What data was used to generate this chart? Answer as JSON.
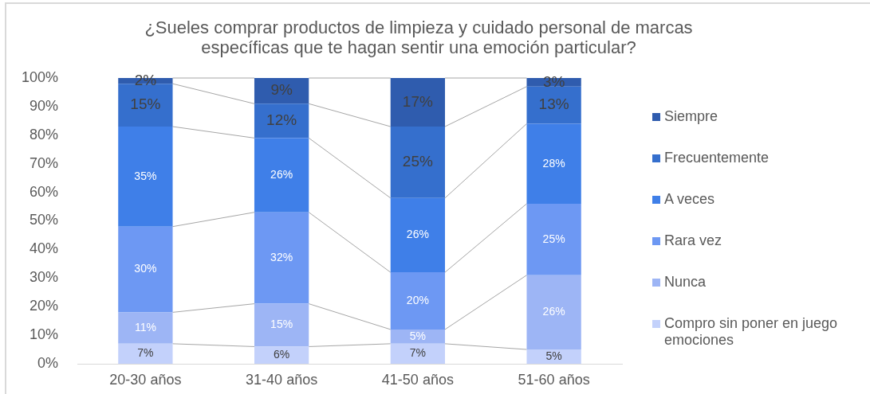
{
  "chart_data": {
    "type": "bar",
    "title": "¿Sueles comprar productos de limpieza y cuidado personal de marcas específicas que te hagan sentir una emoción particular?",
    "categories": [
      "20-30 años",
      "31-40 años",
      "41-50 años",
      "51-60 años"
    ],
    "series": [
      {
        "name": "Compro sin poner en juego emociones",
        "color": "#c3d1fb",
        "values": [
          7,
          6,
          7,
          5
        ],
        "value_labels": [
          "7%",
          "6%",
          "7%",
          "5%"
        ]
      },
      {
        "name": "Nunca",
        "color": "#9db5f5",
        "values": [
          11,
          15,
          5,
          26
        ],
        "value_labels": [
          "11%",
          "15%",
          "5%",
          "26%"
        ]
      },
      {
        "name": "Rara vez",
        "color": "#6d98f3",
        "values": [
          30,
          32,
          20,
          25
        ],
        "value_labels": [
          "30%",
          "32%",
          "20%",
          "25%"
        ]
      },
      {
        "name": "A veces",
        "color": "#3f7fe8",
        "values": [
          35,
          26,
          26,
          28
        ],
        "value_labels": [
          "35%",
          "26%",
          "26%",
          "28%"
        ]
      },
      {
        "name": "Frecuentemente",
        "color": "#356fcd",
        "values": [
          15,
          12,
          25,
          13
        ],
        "value_labels": [
          "15%",
          "12%",
          "25%",
          "13%"
        ]
      },
      {
        "name": "Siempre",
        "color": "#2f5cae",
        "values": [
          2,
          9,
          17,
          3
        ],
        "value_labels": [
          "2%",
          "9%",
          "17%",
          "3%"
        ]
      }
    ],
    "stacked": true,
    "ylim": [
      0,
      100
    ],
    "yticks": [
      {
        "value": 0,
        "label": "0%"
      },
      {
        "value": 10,
        "label": "10%"
      },
      {
        "value": 20,
        "label": "20%"
      },
      {
        "value": 30,
        "label": "30%"
      },
      {
        "value": 40,
        "label": "40%"
      },
      {
        "value": 50,
        "label": "50%"
      },
      {
        "value": 60,
        "label": "60%"
      },
      {
        "value": 70,
        "label": "70%"
      },
      {
        "value": 80,
        "label": "80%"
      },
      {
        "value": 90,
        "label": "90%"
      },
      {
        "value": 100,
        "label": "100%"
      }
    ],
    "grid": false,
    "legend": "right"
  }
}
